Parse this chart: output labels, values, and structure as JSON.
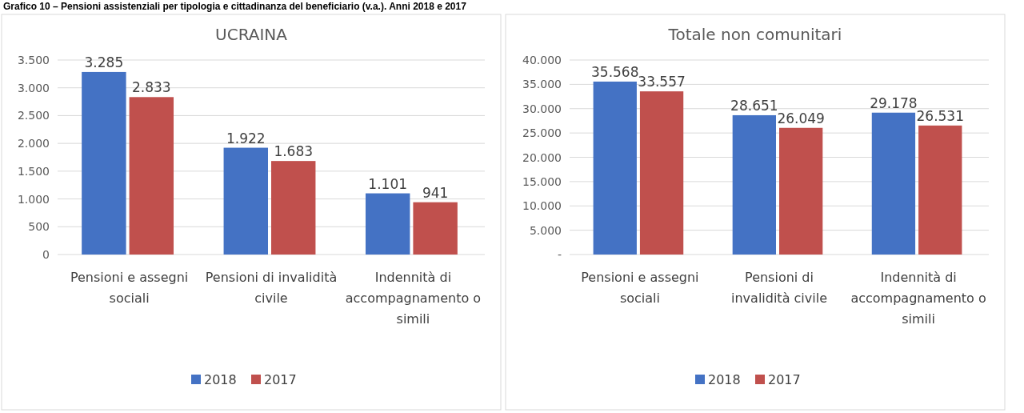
{
  "chart_data": [
    {
      "type": "bar",
      "title": "UCRAINA",
      "annotations": [
        "Grafico 10 – Pensioni assistenziali per tipologia e cittadinanza del beneficiario (v.a.). Anni 2018 e 2017"
      ],
      "categories": [
        "Pensioni e assegni sociali",
        "Pensioni di invalidità civile",
        "Indennità di accompagnamento o simili"
      ],
      "series": [
        {
          "name": "2018",
          "color": "#4472c4",
          "values": [
            3285,
            1922,
            1101
          ],
          "value_labels": [
            "3.285",
            "1.922",
            "1.101"
          ]
        },
        {
          "name": "2017",
          "color": "#c0504d",
          "values": [
            2833,
            1683,
            941
          ],
          "value_labels": [
            "2.833",
            "1.683",
            "941"
          ]
        }
      ],
      "ylim": [
        0,
        3500
      ],
      "yticks": [
        {
          "value": 0,
          "label": "0"
        },
        {
          "value": 500,
          "label": "500"
        },
        {
          "value": 1000,
          "label": "1.000"
        },
        {
          "value": 1500,
          "label": "1.500"
        },
        {
          "value": 2000,
          "label": "2.000"
        },
        {
          "value": 2500,
          "label": "2.500"
        },
        {
          "value": 3000,
          "label": "3.000"
        },
        {
          "value": 3500,
          "label": "3.500"
        }
      ],
      "grid": "y",
      "legend": "bottom"
    },
    {
      "type": "bar",
      "title": "Totale non comunitari",
      "categories": [
        "Pensioni e assegni sociali",
        "Pensioni di invalidità civile",
        "Indennità di accompagnamento o simili"
      ],
      "series": [
        {
          "name": "2018",
          "color": "#4472c4",
          "values": [
            35568,
            28651,
            29178
          ],
          "value_labels": [
            "35.568",
            "28.651",
            "29.178"
          ]
        },
        {
          "name": "2017",
          "color": "#c0504d",
          "values": [
            33557,
            26049,
            26531
          ],
          "value_labels": [
            "33.557",
            "26.049",
            "26.531"
          ]
        }
      ],
      "ylim": [
        0,
        40000
      ],
      "yticks": [
        {
          "value": 0,
          "label": "-"
        },
        {
          "value": 5000,
          "label": "5.000"
        },
        {
          "value": 10000,
          "label": "10.000"
        },
        {
          "value": 15000,
          "label": "15.000"
        },
        {
          "value": 20000,
          "label": "20.000"
        },
        {
          "value": 25000,
          "label": "25.000"
        },
        {
          "value": 30000,
          "label": "30.000"
        },
        {
          "value": 35000,
          "label": "35.000"
        },
        {
          "value": 40000,
          "label": "40.000"
        }
      ],
      "grid": "y",
      "legend": "bottom"
    }
  ]
}
